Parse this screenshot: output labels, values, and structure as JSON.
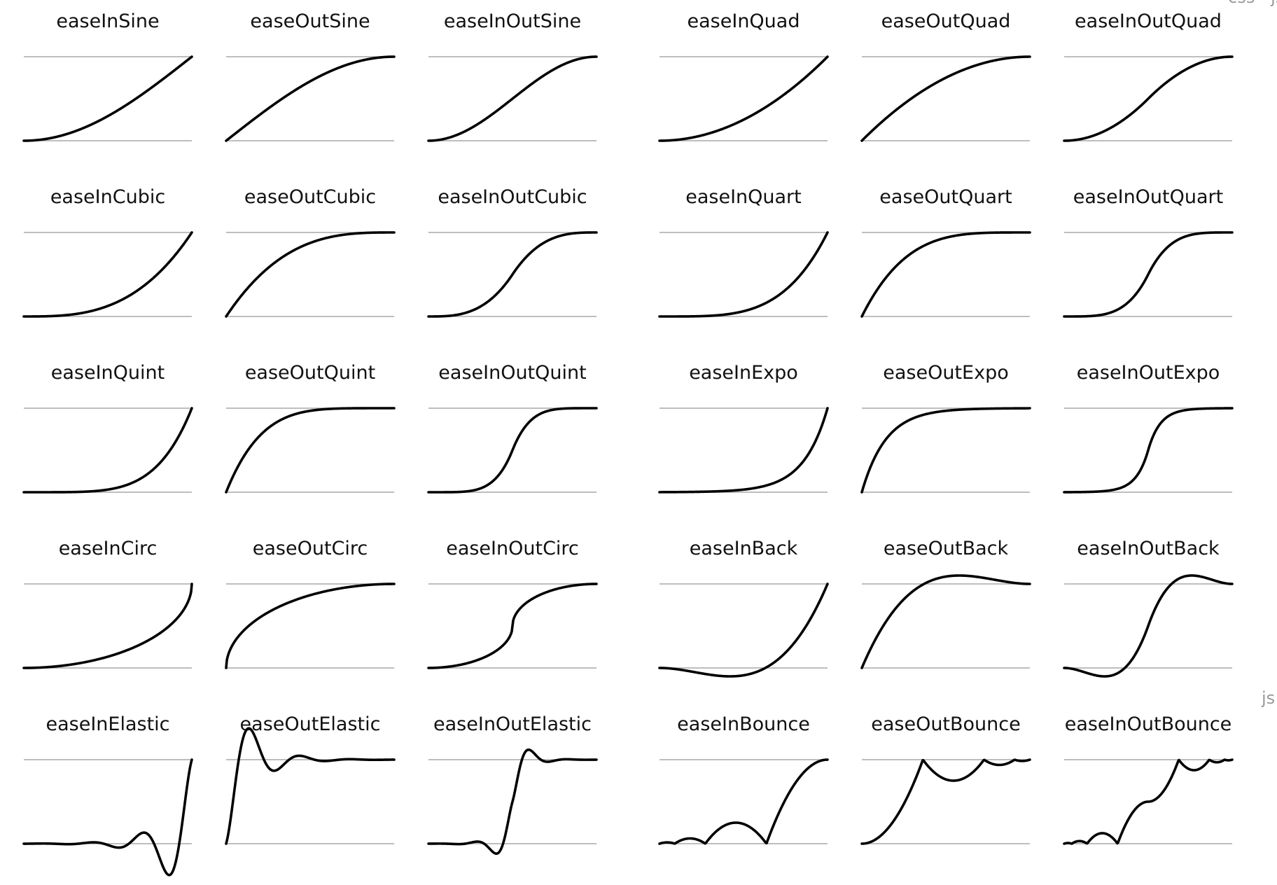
{
  "side_labels": {
    "top": "css · js",
    "right": "js"
  },
  "colors": {
    "background": "#ffffff",
    "curve": "#000000",
    "guide_lines": "#a8a8a8",
    "title_text": "#111111",
    "side_label_text": "#9a9a9a"
  },
  "rows": [
    [
      "easeInSine",
      "easeOutSine",
      "easeInOutSine",
      "easeInQuad",
      "easeOutQuad",
      "easeInOutQuad"
    ],
    [
      "easeInCubic",
      "easeOutCubic",
      "easeInOutCubic",
      "easeInQuart",
      "easeOutQuart",
      "easeInOutQuart"
    ],
    [
      "easeInQuint",
      "easeOutQuint",
      "easeInOutQuint",
      "easeInExpo",
      "easeOutExpo",
      "easeInOutExpo"
    ],
    [
      "easeInCirc",
      "easeOutCirc",
      "easeInOutCirc",
      "easeInBack",
      "easeOutBack",
      "easeInOutBack"
    ],
    [
      "easeInElastic",
      "easeOutElastic",
      "easeInOutElastic",
      "easeInBounce",
      "easeOutBounce",
      "easeInOutBounce"
    ]
  ]
}
